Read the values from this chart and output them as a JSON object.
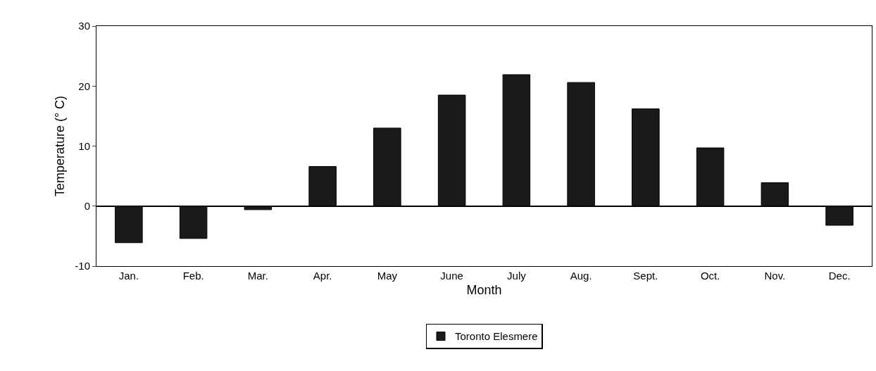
{
  "chart_data": {
    "type": "bar",
    "xlabel": "Month",
    "ylabel": "Temperature (° C)",
    "categories": [
      "Jan.",
      "Feb.",
      "Mar.",
      "Apr.",
      "May",
      "June",
      "July",
      "Aug.",
      "Sept.",
      "Oct.",
      "Nov.",
      "Dec."
    ],
    "series": [
      {
        "name": "Toronto Elesmere",
        "color": "#1a1a1a",
        "values": [
          -6.1,
          -5.4,
          -0.6,
          6.6,
          13.0,
          18.5,
          21.9,
          20.6,
          16.2,
          9.7,
          3.9,
          -3.2
        ]
      }
    ],
    "ylim": [
      -10,
      30
    ],
    "yticks": [
      -10,
      0,
      10,
      20,
      30
    ],
    "legend": "bottom"
  }
}
